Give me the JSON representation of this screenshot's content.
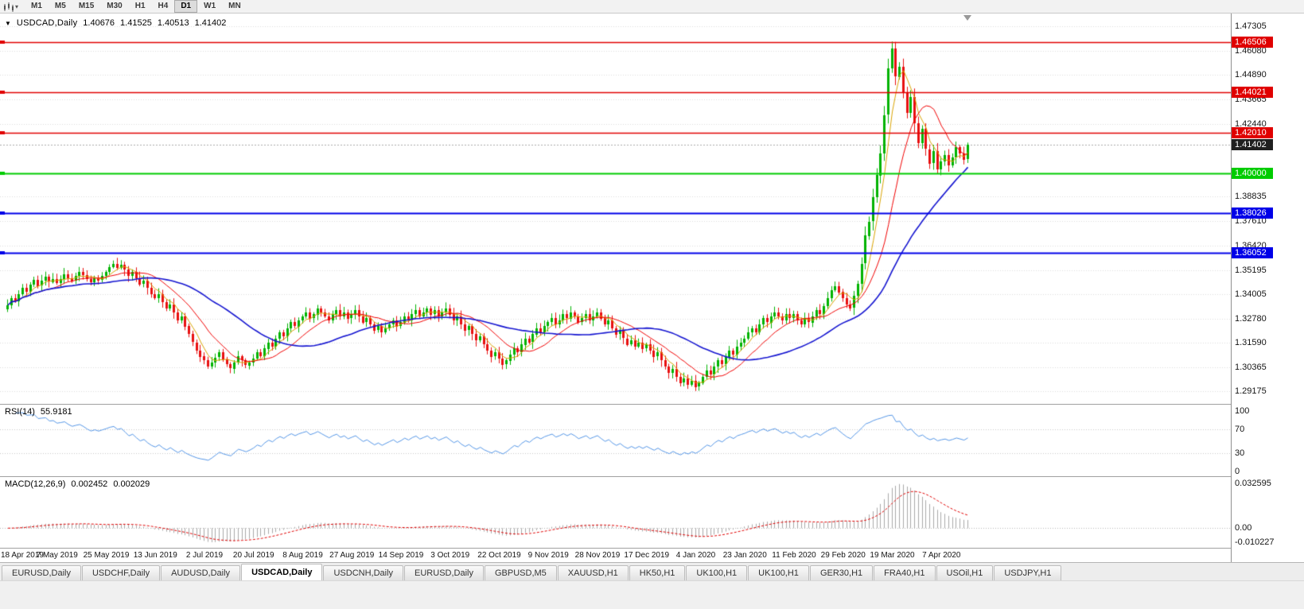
{
  "toolbar": {
    "timeframes": [
      "M1",
      "M5",
      "M15",
      "M30",
      "H1",
      "H4",
      "D1",
      "W1",
      "MN"
    ],
    "active_timeframe": "D1"
  },
  "chart": {
    "title": {
      "symbol_period": "USDCAD,Daily",
      "open": "1.40676",
      "high": "1.41525",
      "low": "1.40513",
      "close": "1.41402"
    },
    "price_axis": {
      "ticks": [
        "1.47305",
        "1.46080",
        "1.44890",
        "1.43665",
        "1.42440",
        "1.38835",
        "1.37610",
        "1.36420",
        "1.35195",
        "1.34005",
        "1.32780",
        "1.31590",
        "1.30365",
        "1.29175"
      ]
    },
    "levels": [
      {
        "value": 1.46506,
        "label": "1.46506",
        "color": "#e00000"
      },
      {
        "value": 1.44021,
        "label": "1.44021",
        "color": "#e00000"
      },
      {
        "value": 1.4201,
        "label": "1.42010",
        "color": "#e00000"
      },
      {
        "value": 1.4,
        "label": "1.40000",
        "color": "#00cc00"
      },
      {
        "value": 1.38026,
        "label": "1.38026",
        "color": "#0000e8"
      },
      {
        "value": 1.36052,
        "label": "1.36052",
        "color": "#0000e8"
      }
    ],
    "current_price": {
      "value": 1.41402,
      "label": "1.41402",
      "bg": "#1f1f1f"
    }
  },
  "chart_data": {
    "type": "candlestick",
    "title": "USDCAD,Daily",
    "y_range": [
      1.29175,
      1.47305
    ],
    "x_label_step": 13,
    "x_labels": [
      "18 Apr 2019",
      "7 May 2019",
      "25 May 2019",
      "13 Jun 2019",
      "2 Jul 2019",
      "20 Jul 2019",
      "8 Aug 2019",
      "27 Aug 2019",
      "14 Sep 2019",
      "3 Oct 2019",
      "22 Oct 2019",
      "9 Nov 2019",
      "28 Nov 2019",
      "17 Dec 2019",
      "4 Jan 2020",
      "23 Jan 2020",
      "11 Feb 2020",
      "29 Feb 2020",
      "19 Mar 2020",
      "7 Apr 2020"
    ],
    "closes": [
      1.3345,
      1.338,
      1.3365,
      1.34,
      1.343,
      1.341,
      1.3445,
      1.347,
      1.344,
      1.3465,
      1.3485,
      1.346,
      1.3475,
      1.3455,
      1.3475,
      1.35,
      1.348,
      1.3465,
      1.349,
      1.351,
      1.3495,
      1.3475,
      1.346,
      1.348,
      1.347,
      1.349,
      1.351,
      1.3535,
      1.355,
      1.353,
      1.3545,
      1.352,
      1.349,
      1.351,
      1.348,
      1.345,
      1.3465,
      1.343,
      1.34,
      1.338,
      1.34,
      1.336,
      1.333,
      1.335,
      1.331,
      1.327,
      1.329,
      1.324,
      1.32,
      1.316,
      1.312,
      1.309,
      1.307,
      1.304,
      1.306,
      1.3085,
      1.311,
      1.3075,
      1.305,
      1.303,
      1.306,
      1.309,
      1.307,
      1.3045,
      1.306,
      1.308,
      1.311,
      1.309,
      1.313,
      1.316,
      1.314,
      1.318,
      1.321,
      1.319,
      1.323,
      1.326,
      1.324,
      1.327,
      1.329,
      1.331,
      1.328,
      1.33,
      1.333,
      1.331,
      1.329,
      1.327,
      1.33,
      1.332,
      1.329,
      1.331,
      1.328,
      1.33,
      1.332,
      1.329,
      1.326,
      1.328,
      1.325,
      1.322,
      1.324,
      1.321,
      1.323,
      1.325,
      1.327,
      1.324,
      1.326,
      1.329,
      1.327,
      1.33,
      1.332,
      1.329,
      1.331,
      1.333,
      1.33,
      1.332,
      1.329,
      1.331,
      1.333,
      1.33,
      1.327,
      1.329,
      1.325,
      1.322,
      1.324,
      1.32,
      1.317,
      1.319,
      1.315,
      1.312,
      1.309,
      1.311,
      1.308,
      1.305,
      1.307,
      1.31,
      1.313,
      1.311,
      1.315,
      1.318,
      1.316,
      1.32,
      1.323,
      1.321,
      1.324,
      1.326,
      1.328,
      1.325,
      1.327,
      1.33,
      1.328,
      1.331,
      1.329,
      1.326,
      1.328,
      1.33,
      1.327,
      1.329,
      1.331,
      1.328,
      1.325,
      1.327,
      1.323,
      1.32,
      1.322,
      1.318,
      1.315,
      1.317,
      1.314,
      1.316,
      1.313,
      1.315,
      1.312,
      1.309,
      1.311,
      1.307,
      1.304,
      1.301,
      1.303,
      1.299,
      1.296,
      1.298,
      1.295,
      1.297,
      1.294,
      1.296,
      1.299,
      1.302,
      1.3,
      1.304,
      1.307,
      1.305,
      1.309,
      1.312,
      1.31,
      1.314,
      1.316,
      1.318,
      1.321,
      1.323,
      1.321,
      1.325,
      1.328,
      1.326,
      1.329,
      1.331,
      1.329,
      1.327,
      1.33,
      1.328,
      1.33,
      1.327,
      1.325,
      1.328,
      1.326,
      1.329,
      1.332,
      1.33,
      1.334,
      1.338,
      1.342,
      1.344,
      1.341,
      1.338,
      1.335,
      1.333,
      1.339,
      1.345,
      1.355,
      1.369,
      1.376,
      1.388,
      1.399,
      1.41,
      1.429,
      1.452,
      1.462,
      1.448,
      1.453,
      1.44,
      1.43,
      1.438,
      1.425,
      1.415,
      1.422,
      1.412,
      1.405,
      1.411,
      1.402,
      1.406,
      1.409,
      1.404,
      1.408,
      1.413,
      1.41,
      1.40676,
      1.41402
    ],
    "last_candle": {
      "open": 1.40676,
      "high": 1.41525,
      "low": 1.40513,
      "close": 1.41402
    },
    "colors": {
      "bull": "#00b300",
      "bear": "#e81010",
      "ma_fast": "#d9a300",
      "ma_mid": "#f00000",
      "ma_slow": "#1515d0",
      "grid": "#dcdcdc",
      "current_line": "#a8a8a8"
    }
  },
  "indicators": {
    "rsi": {
      "label": "RSI(14)",
      "value": "55.9181",
      "levels": [
        "100",
        "70",
        "30",
        "0"
      ],
      "color": "#5596e6",
      "level_line_color": "#c8c8c8"
    },
    "macd": {
      "label": "MACD(12,26,9)",
      "value_main": "0.002452",
      "value_signal": "0.002029",
      "scale": [
        "0.032595",
        "0.00",
        "-0.010227"
      ],
      "histogram_color": "#a8a8a8",
      "signal_color": "#e00000"
    }
  },
  "tabs": {
    "items": [
      "EURUSD,Daily",
      "USDCHF,Daily",
      "AUDUSD,Daily",
      "USDCAD,Daily",
      "USDCNH,Daily",
      "EURUSD,Daily",
      "GBPUSD,M5",
      "XAUUSD,H1",
      "HK50,H1",
      "UK100,H1",
      "UK100,H1",
      "GER30,H1",
      "FRA40,H1",
      "USOil,H1",
      "USDJPY,H1"
    ],
    "active_index": 3
  }
}
